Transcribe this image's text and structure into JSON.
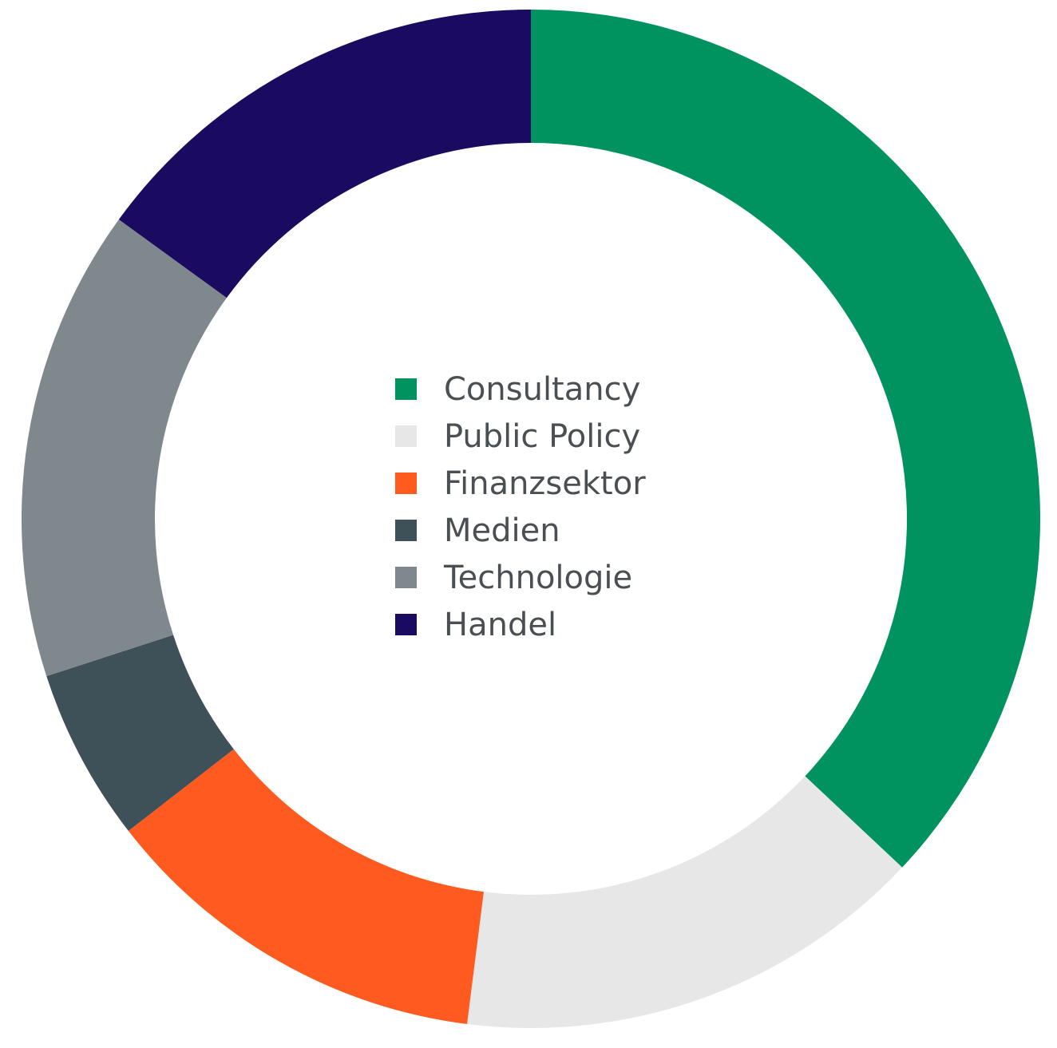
{
  "chart_data": {
    "type": "donut",
    "categories": [
      "Consultancy",
      "Public Policy",
      "Finanzsektor",
      "Medien",
      "Technologie",
      "Handel"
    ],
    "values": [
      37,
      15,
      12.5,
      5.5,
      15,
      15
    ],
    "colors": [
      "#00935f",
      "#e6e7e6",
      "#ff5a1f",
      "#3e5159",
      "#7f898d",
      "#1a0a60"
    ],
    "legend": "center"
  }
}
